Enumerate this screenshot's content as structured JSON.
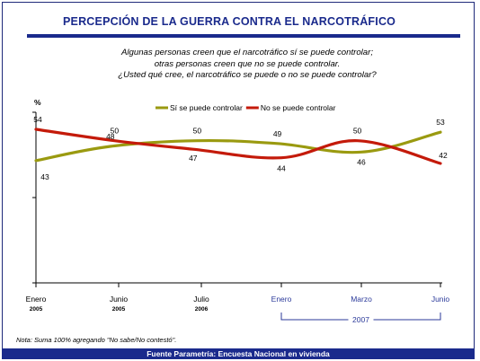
{
  "title": "PERCEPCIÓN DE LA GUERRA CONTRA EL NARCOTRÁFICO",
  "question": [
    "Algunas personas creen que el narcotráfico sí se puede controlar;",
    "otras personas creen que no se puede controlar.",
    "¿Usted qué cree, el narcotráfico se puede o no se puede controlar?"
  ],
  "footer": "Fuente Parametría: Encuesta Nacional en vivienda",
  "note": "Nota: Suma 100% agregando \"No sabe/No contestó\".",
  "colors": {
    "accent": "#1a2a8c",
    "series_si": "#9a9a10",
    "series_no": "#c41a0a"
  },
  "chart_data": {
    "type": "line",
    "ylabel": "%",
    "x_ticks": [
      {
        "label": "Enero",
        "year": "2005"
      },
      {
        "label": "Junio",
        "year": "2005"
      },
      {
        "label": "Julio",
        "year": "2006"
      },
      {
        "label": "Enero",
        "year": ""
      },
      {
        "label": "Marzo",
        "year": ""
      },
      {
        "label": "Junio",
        "year": ""
      }
    ],
    "x_group": {
      "label": "2007",
      "from_tick": 3,
      "to_tick": 5
    },
    "ylim": [
      0,
      60
    ],
    "y_ticks": [
      0,
      30,
      60
    ],
    "legend_position": "top",
    "series": [
      {
        "name": "Sí se puede controlar",
        "color": "#9a9a10",
        "points": [
          {
            "x": 0.0,
            "y": 43,
            "label": "43"
          },
          {
            "x": 0.9,
            "y": 48,
            "label": "48"
          },
          {
            "x": 1.95,
            "y": 50,
            "label": "50"
          },
          {
            "x": 2.95,
            "y": 49,
            "label": "49"
          },
          {
            "x": 4.0,
            "y": 46,
            "label": "46"
          },
          {
            "x": 5.0,
            "y": 53,
            "label": "53"
          }
        ]
      },
      {
        "name": "No se puede controlar",
        "color": "#c41a0a",
        "points": [
          {
            "x": 0.0,
            "y": 54,
            "label": "54"
          },
          {
            "x": 0.95,
            "y": 50,
            "label": "50"
          },
          {
            "x": 1.9,
            "y": 47,
            "label": "47"
          },
          {
            "x": 3.0,
            "y": 44,
            "label": "44"
          },
          {
            "x": 3.95,
            "y": 50,
            "label": "50"
          },
          {
            "x": 5.0,
            "y": 42,
            "label": "42"
          }
        ]
      }
    ]
  }
}
